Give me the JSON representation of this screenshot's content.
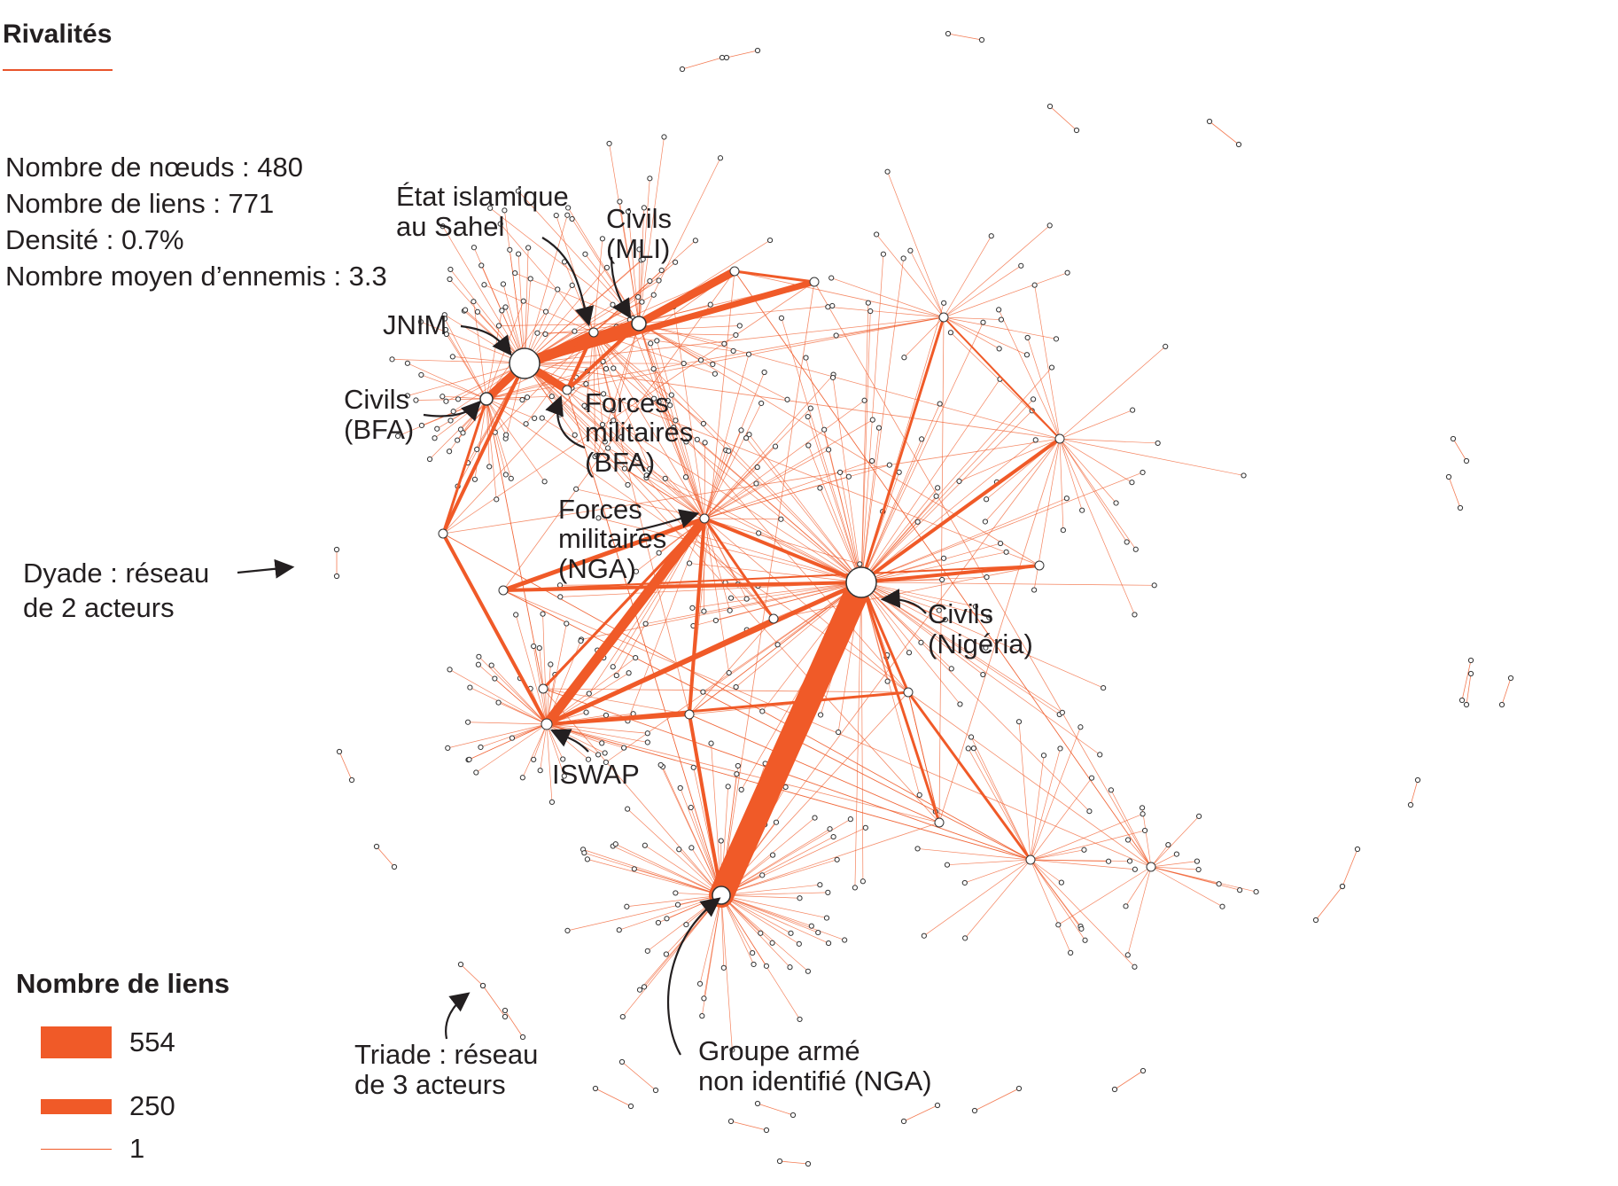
{
  "title": "Rivalités",
  "stats": [
    "Nombre de nœuds : 480",
    "Nombre de liens : 771",
    "Densité : 0.7%",
    "Nombre moyen d’ennemis : 3.3"
  ],
  "colors": {
    "edge": "#f05a28",
    "accent": "#e9532b",
    "node_stroke": "#333333"
  },
  "labels": {
    "ei_sahel": [
      "État islamique",
      "au Sahel"
    ],
    "civils_mli": [
      "Civils",
      "(MLI)"
    ],
    "jnim": "JNIM",
    "civils_bfa": [
      "Civils",
      "(BFA)"
    ],
    "forces_bfa": [
      "Forces",
      "militaires",
      "(BFA)"
    ],
    "forces_nga": [
      "Forces",
      "militaires",
      "(NGA)"
    ],
    "civils_nigeria": [
      "Civils",
      "(Nigéria)"
    ],
    "iswap": "ISWAP",
    "groupe_arme": [
      "Groupe armé",
      "non identifié (NGA)"
    ],
    "dyade": [
      "Dyade : réseau",
      "de 2 acteurs"
    ],
    "triade": [
      "Triade : réseau",
      "de 3 acteurs"
    ]
  },
  "legend": {
    "title": "Nombre de liens",
    "items": [
      {
        "label": "554",
        "value": 554
      },
      {
        "label": "250",
        "value": 250
      },
      {
        "label": "1",
        "value": 1
      }
    ]
  }
}
